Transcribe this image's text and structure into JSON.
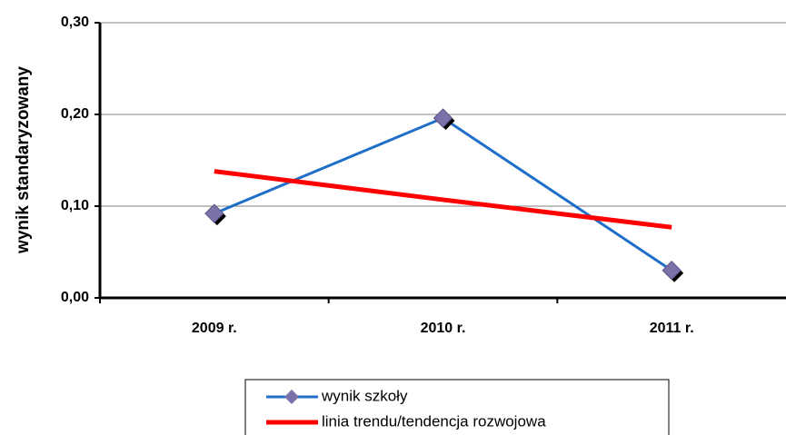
{
  "chart_data": {
    "type": "line",
    "y_label": "wynik standaryzowany",
    "categories": [
      "2009 r.",
      "2010 r.",
      "2011 r."
    ],
    "series": [
      {
        "name": "wynik szkoły",
        "color": "#1f6fc8",
        "marker": "diamond",
        "values": [
          0.092,
          0.196,
          0.03
        ]
      },
      {
        "name": "linia trendu/tendencja rozwojowa",
        "color": "#ff0000",
        "values": [
          0.138,
          0.107,
          0.077
        ]
      }
    ],
    "ylim": [
      0,
      0.3
    ],
    "yticks": [
      {
        "value": 0,
        "label": "0,00"
      },
      {
        "value": 0.1,
        "label": "0,10"
      },
      {
        "value": 0.2,
        "label": "0,20"
      },
      {
        "value": 0.3,
        "label": "0,30"
      }
    ],
    "grid": true
  }
}
